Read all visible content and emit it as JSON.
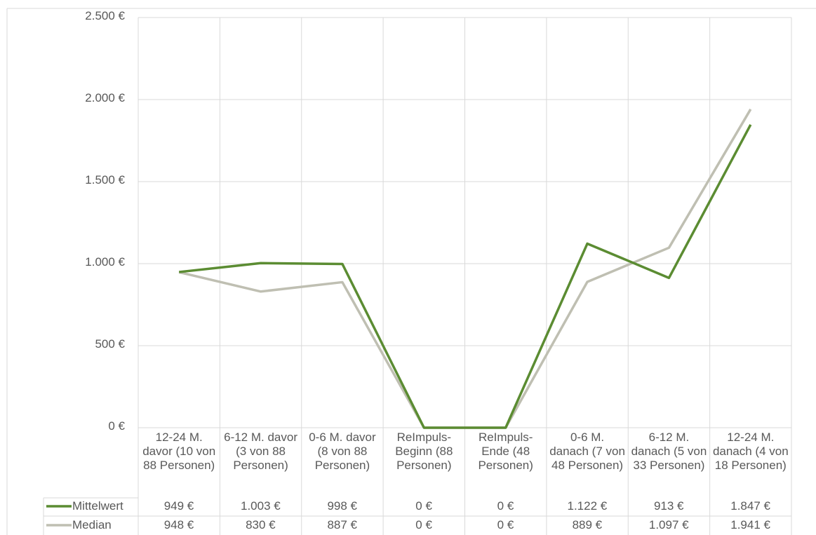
{
  "chart_data": {
    "type": "line",
    "categories": [
      "12-24 M. davor (10 von 88 Personen)",
      "6-12 M. davor (3 von 88 Personen)",
      "0-6 M. davor (8 von 88 Personen)",
      "ReImpuls-Beginn (88 Personen)",
      "ReImpuls-Ende (48 Personen)",
      "0-6 M. danach (7 von 48 Personen)",
      "6-12 M. danach (5 von 33 Personen)",
      "12-24 M. danach (4 von 18 Personen)"
    ],
    "series": [
      {
        "name": "Mittelwert",
        "color": "#5b8c32",
        "values": [
          949,
          1003,
          998,
          0,
          0,
          1122,
          913,
          1847
        ],
        "value_labels": [
          "949 €",
          "1.003 €",
          "998 €",
          "0 €",
          "0 €",
          "1.122 €",
          "913 €",
          "1.847 €"
        ]
      },
      {
        "name": "Median",
        "color": "#bfbfb2",
        "values": [
          948,
          830,
          887,
          0,
          0,
          889,
          1097,
          1941
        ],
        "value_labels": [
          "948 €",
          "830 €",
          "887 €",
          "0 €",
          "0 €",
          "889 €",
          "1.097 €",
          "1.941 €"
        ]
      }
    ],
    "ylim": [
      0,
      2500
    ],
    "yticks": [
      {
        "value": 0,
        "label": "0 €"
      },
      {
        "value": 500,
        "label": "500 €"
      },
      {
        "value": 1000,
        "label": "1.000 €"
      },
      {
        "value": 1500,
        "label": "1.500 €"
      },
      {
        "value": 2000,
        "label": "2.000 €"
      },
      {
        "value": 2500,
        "label": "2.500 €"
      }
    ],
    "grid": true
  }
}
